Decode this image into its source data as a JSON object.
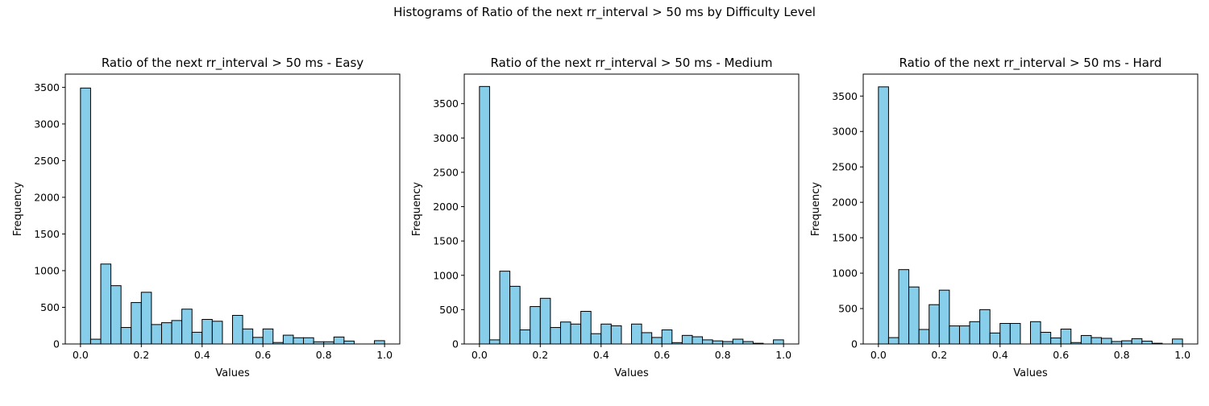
{
  "figure": {
    "suptitle": "Histograms of Ratio of the next rr_interval > 50 ms by Difficulty Level"
  },
  "style": {
    "bar_fill": "#87ceeb",
    "bar_edge": "#000000",
    "axis_color": "#000000"
  },
  "chart_data": [
    {
      "type": "bar",
      "title": "Ratio of the next rr_interval > 50 ms - Easy",
      "xlabel": "Values",
      "ylabel": "Frequency",
      "xlim": [
        -0.05,
        1.05
      ],
      "ylim": [
        0,
        3680
      ],
      "xticks": [
        0.0,
        0.2,
        0.4,
        0.6,
        0.8,
        1.0
      ],
      "xtick_labels": [
        "0.0",
        "0.2",
        "0.4",
        "0.6",
        "0.8",
        "1.0"
      ],
      "yticks": [
        0,
        500,
        1000,
        1500,
        2000,
        2500,
        3000,
        3500
      ],
      "ytick_labels": [
        "0",
        "500",
        "1000",
        "1500",
        "2000",
        "2500",
        "3000",
        "3500"
      ],
      "bin_edges": [
        0.0,
        0.0333,
        0.0667,
        0.1,
        0.1333,
        0.1667,
        0.2,
        0.2333,
        0.2667,
        0.3,
        0.3333,
        0.3667,
        0.4,
        0.4333,
        0.4667,
        0.5,
        0.5333,
        0.5667,
        0.6,
        0.6333,
        0.6667,
        0.7,
        0.7333,
        0.7667,
        0.8,
        0.8333,
        0.8667,
        0.9,
        0.9333,
        0.9667,
        1.0
      ],
      "values": [
        3490,
        65,
        1090,
        795,
        225,
        565,
        705,
        265,
        290,
        320,
        475,
        160,
        335,
        310,
        0,
        390,
        205,
        90,
        205,
        20,
        120,
        85,
        85,
        30,
        30,
        95,
        40,
        0,
        0,
        45
      ]
    },
    {
      "type": "bar",
      "title": "Ratio of the next rr_interval > 50 ms - Medium",
      "xlabel": "Values",
      "ylabel": "Frequency",
      "xlim": [
        -0.05,
        1.05
      ],
      "ylim": [
        0,
        3930
      ],
      "xticks": [
        0.0,
        0.2,
        0.4,
        0.6,
        0.8,
        1.0
      ],
      "xtick_labels": [
        "0.0",
        "0.2",
        "0.4",
        "0.6",
        "0.8",
        "1.0"
      ],
      "yticks": [
        0,
        500,
        1000,
        1500,
        2000,
        2500,
        3000,
        3500
      ],
      "ytick_labels": [
        "0",
        "500",
        "1000",
        "1500",
        "2000",
        "2500",
        "3000",
        "3500"
      ],
      "bin_edges": [
        0.0,
        0.0333,
        0.0667,
        0.1,
        0.1333,
        0.1667,
        0.2,
        0.2333,
        0.2667,
        0.3,
        0.3333,
        0.3667,
        0.4,
        0.4333,
        0.4667,
        0.5,
        0.5333,
        0.5667,
        0.6,
        0.6333,
        0.6667,
        0.7,
        0.7333,
        0.7667,
        0.8,
        0.8333,
        0.8667,
        0.9,
        0.9333,
        0.9667,
        1.0
      ],
      "values": [
        3750,
        60,
        1060,
        840,
        205,
        545,
        665,
        240,
        320,
        290,
        475,
        150,
        290,
        265,
        0,
        290,
        165,
        95,
        205,
        20,
        125,
        105,
        60,
        45,
        35,
        70,
        35,
        10,
        0,
        60
      ]
    },
    {
      "type": "bar",
      "title": "Ratio of the next rr_interval > 50 ms - Hard",
      "xlabel": "Values",
      "ylabel": "Frequency",
      "xlim": [
        -0.05,
        1.05
      ],
      "ylim": [
        0,
        3810
      ],
      "xticks": [
        0.0,
        0.2,
        0.4,
        0.6,
        0.8,
        1.0
      ],
      "xtick_labels": [
        "0.0",
        "0.2",
        "0.4",
        "0.6",
        "0.8",
        "1.0"
      ],
      "yticks": [
        0,
        500,
        1000,
        1500,
        2000,
        2500,
        3000,
        3500
      ],
      "ytick_labels": [
        "0",
        "500",
        "1000",
        "1500",
        "2000",
        "2500",
        "3000",
        "3500"
      ],
      "bin_edges": [
        0.0,
        0.0333,
        0.0667,
        0.1,
        0.1333,
        0.1667,
        0.2,
        0.2333,
        0.2667,
        0.3,
        0.3333,
        0.3667,
        0.4,
        0.4333,
        0.4667,
        0.5,
        0.5333,
        0.5667,
        0.6,
        0.6333,
        0.6667,
        0.7,
        0.7333,
        0.7667,
        0.8,
        0.8333,
        0.8667,
        0.9,
        0.9333,
        0.9667,
        1.0
      ],
      "values": [
        3630,
        90,
        1050,
        805,
        205,
        555,
        760,
        255,
        255,
        315,
        485,
        155,
        290,
        290,
        0,
        315,
        165,
        85,
        210,
        20,
        120,
        90,
        80,
        35,
        45,
        75,
        40,
        10,
        0,
        70
      ]
    }
  ]
}
